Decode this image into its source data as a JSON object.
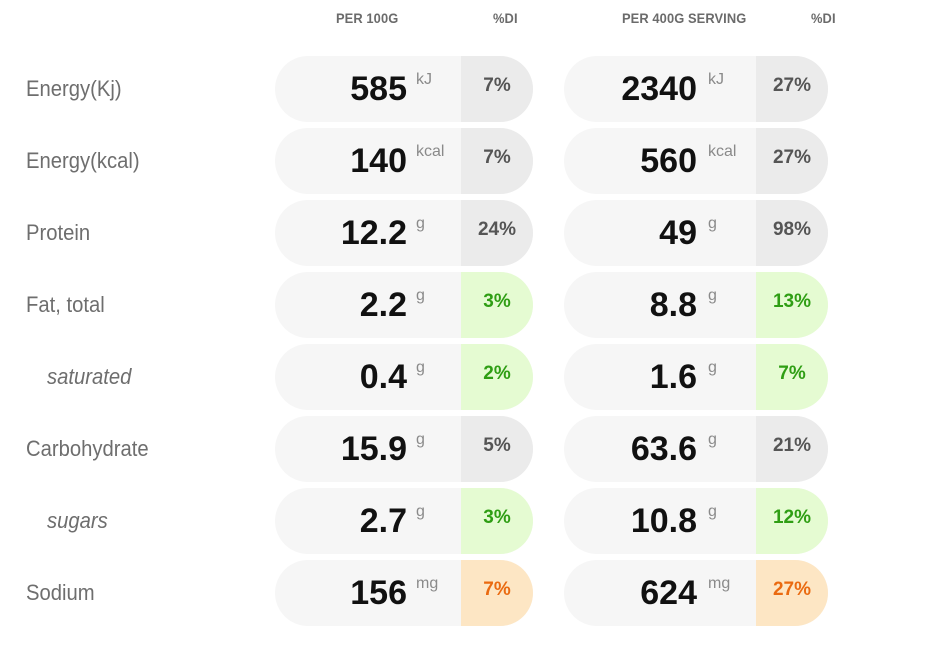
{
  "headers": {
    "per100": "PER 100G",
    "di1": "%DI",
    "perServing": "PER 400G SERVING",
    "di2": "%DI"
  },
  "rows": [
    {
      "label": "Energy(Kj)",
      "sub": false,
      "v1": "585",
      "u1": "kJ",
      "d1": "7%",
      "c1": "grey",
      "v2": "2340",
      "u2": "kJ",
      "d2": "27%",
      "c2": "grey"
    },
    {
      "label": "Energy(kcal)",
      "sub": false,
      "v1": "140",
      "u1": "kcal",
      "d1": "7%",
      "c1": "grey",
      "v2": "560",
      "u2": "kcal",
      "d2": "27%",
      "c2": "grey"
    },
    {
      "label": "Protein",
      "sub": false,
      "v1": "12.2",
      "u1": "g",
      "d1": "24%",
      "c1": "grey",
      "v2": "49",
      "u2": "g",
      "d2": "98%",
      "c2": "grey"
    },
    {
      "label": "Fat, total",
      "sub": false,
      "v1": "2.2",
      "u1": "g",
      "d1": "3%",
      "c1": "green",
      "v2": "8.8",
      "u2": "g",
      "d2": "13%",
      "c2": "green"
    },
    {
      "label": "saturated",
      "sub": true,
      "v1": "0.4",
      "u1": "g",
      "d1": "2%",
      "c1": "green",
      "v2": "1.6",
      "u2": "g",
      "d2": "7%",
      "c2": "green"
    },
    {
      "label": "Carbohydrate",
      "sub": false,
      "v1": "15.9",
      "u1": "g",
      "d1": "5%",
      "c1": "grey",
      "v2": "63.6",
      "u2": "g",
      "d2": "21%",
      "c2": "grey"
    },
    {
      "label": "sugars",
      "sub": true,
      "v1": "2.7",
      "u1": "g",
      "d1": "3%",
      "c1": "green",
      "v2": "10.8",
      "u2": "g",
      "d2": "12%",
      "c2": "green"
    },
    {
      "label": "Sodium",
      "sub": false,
      "v1": "156",
      "u1": "mg",
      "d1": "7%",
      "c1": "orange",
      "v2": "624",
      "u2": "mg",
      "d2": "27%",
      "c2": "orange"
    }
  ],
  "colors": {
    "grey": "#ebebeb",
    "green": "#e5fbd2",
    "orange": "#fde6c4"
  }
}
